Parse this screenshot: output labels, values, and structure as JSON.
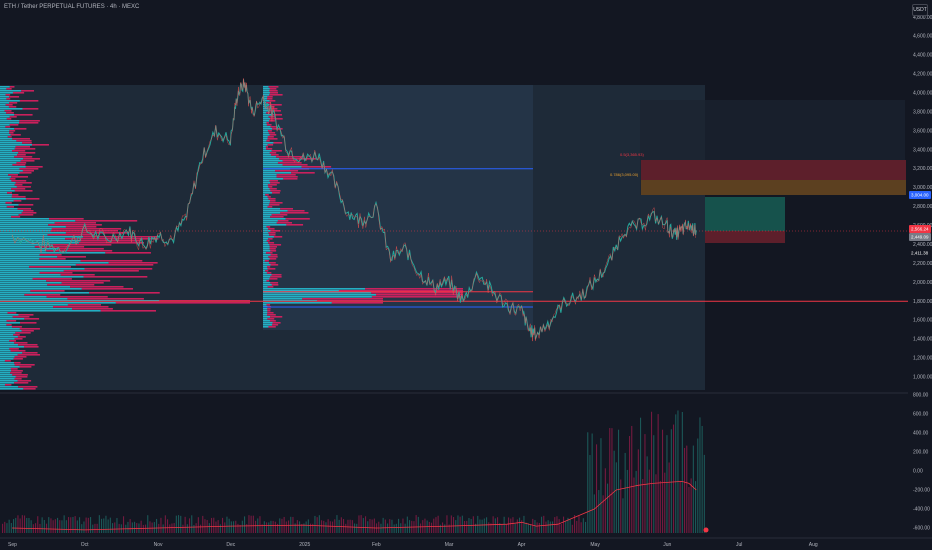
{
  "header": {
    "title": "ETH / Tether PERPETUAL FUTURES · 4h · MEXC",
    "currency_badge": "USDT"
  },
  "chart_data": {
    "type": "line",
    "title": "ETH / Tether PERPETUAL FUTURES · 4h · MEXC",
    "x_labels": [
      "Sep",
      "Oct",
      "Nov",
      "Dec",
      "2025",
      "Feb",
      "Mar",
      "Apr",
      "May",
      "Jun",
      "Jul",
      "Aug"
    ],
    "price_axis": {
      "ticks": [
        "4,800.00",
        "4,600.00",
        "4,400.00",
        "4,200.00",
        "4,000.00",
        "3,800.00",
        "3,600.00",
        "3,400.00",
        "3,200.00",
        "3,000.00",
        "2,800.00",
        "2,600.00",
        "2,400.00",
        "2,200.00",
        "2,000.00",
        "1,800.00",
        "1,600.00",
        "1,400.00",
        "1,200.00",
        "1,000.00"
      ],
      "ylim": [
        900,
        4900
      ]
    },
    "oscillator_axis": {
      "ticks": [
        "800.00",
        "600.00",
        "400.00",
        "200.00",
        "0.00",
        "-200.00",
        "-400.00",
        "-600.00"
      ],
      "ylim": [
        -650,
        850
      ]
    },
    "price_series": {
      "name": "",
      "color": "#26a69a",
      "x": [
        0,
        0.4,
        0.7,
        1.0,
        1.3,
        1.6,
        1.8,
        2.0,
        2.2,
        2.4,
        2.6,
        2.8,
        3.0,
        3.1,
        3.2,
        3.3,
        3.45,
        3.6,
        3.8,
        4.0,
        4.2,
        4.4,
        4.6,
        4.8,
        5.0,
        5.2,
        5.4,
        5.6,
        5.8,
        6.0,
        6.2,
        6.4,
        6.6,
        6.8,
        7.0,
        7.1,
        7.2,
        7.4,
        7.6,
        7.8,
        8.0,
        8.2,
        8.4,
        8.6,
        8.8,
        9.0,
        9.1,
        9.2,
        9.3,
        9.4
      ],
      "y": [
        2500,
        2400,
        2350,
        2550,
        2450,
        2550,
        2400,
        2500,
        2450,
        2700,
        3300,
        3600,
        3500,
        4000,
        4100,
        3800,
        3950,
        3750,
        3400,
        3300,
        3350,
        3100,
        2750,
        2650,
        2780,
        2250,
        2350,
        2100,
        1950,
        2000,
        1800,
        2100,
        1900,
        1750,
        1700,
        1500,
        1450,
        1600,
        1800,
        1850,
        2000,
        2200,
        2550,
        2600,
        2700,
        2600,
        2500,
        2550,
        2600,
        2550
      ]
    },
    "oscillator_series": {
      "name": "",
      "color": "#f23645",
      "x": [
        0,
        1,
        2,
        3,
        4,
        5,
        6,
        6.8,
        7,
        7.2,
        7.5,
        8,
        8.3,
        8.6,
        8.8,
        9.0,
        9.2,
        9.3,
        9.4
      ],
      "y": [
        -600,
        -620,
        -600,
        -580,
        -570,
        -600,
        -580,
        -560,
        -540,
        -580,
        -560,
        -400,
        -200,
        -150,
        -130,
        -120,
        -110,
        -130,
        -200
      ]
    },
    "horizontal_levels": {
      "support_red": 1800,
      "blue_upper": 3200,
      "blue_lower": 1740,
      "red_near": 1900
    },
    "fib_labels": [
      "0.5(3,365.93)",
      "0.786(3,095.00)"
    ],
    "price_tags": [
      {
        "label": "3,004.00",
        "color": "#2962ff"
      },
      {
        "label": "2,566.24",
        "color": "#f23645"
      },
      {
        "label": "2,449.09",
        "color": "#787b86"
      },
      {
        "label": "2,411.38",
        "color": "#131722"
      }
    ],
    "colors": {
      "background": "#131722",
      "profile_teal": "#26c6da",
      "profile_magenta": "#e91e63",
      "range_box": "#2a3b4e",
      "red_zone": "#5d1f2b",
      "orange_zone": "#5c4020",
      "teal_zone": "#16524c",
      "blue_line": "#2962ff",
      "red_line": "#f23645"
    },
    "grid": false,
    "legend": "none"
  }
}
